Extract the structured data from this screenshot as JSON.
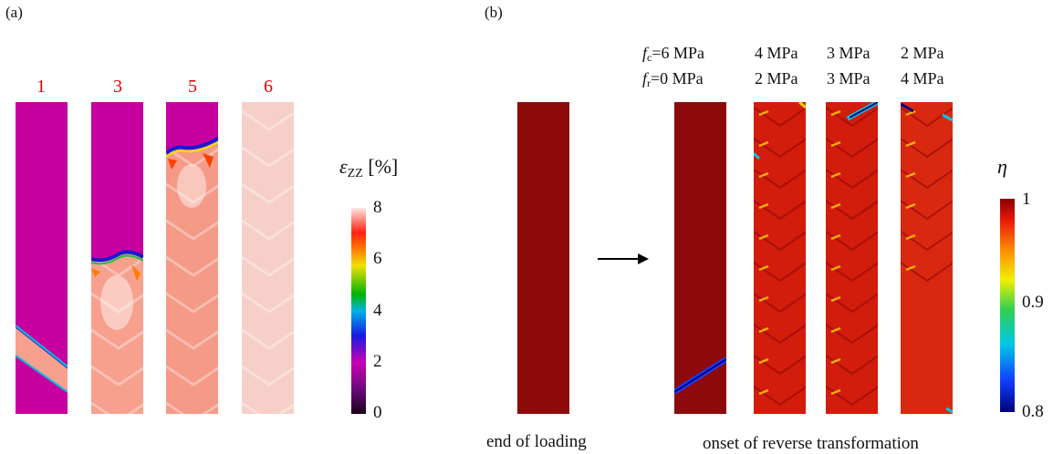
{
  "panel_a": {
    "label": "(a)",
    "steps": [
      "1",
      "3",
      "5",
      "6"
    ],
    "colorbar": {
      "title_symbol": "ε",
      "title_sub": "ZZ",
      "title_unit": "[%]",
      "ticks": [
        "8",
        "6",
        "4",
        "2",
        "0"
      ]
    }
  },
  "panel_b": {
    "label": "(b)",
    "fc_symbol": "f",
    "fc_sub": "c",
    "fc_first": "=6 MPa",
    "fr_symbol": "f",
    "fr_sub": "r",
    "fr_first": "=0 MPa",
    "fc_values": [
      "4 MPa",
      "3 MPa",
      "2 MPa"
    ],
    "fr_values": [
      "2 MPa",
      "3 MPa",
      "4 MPa"
    ],
    "caption_left": "end of loading",
    "caption_right": "onset of reverse transformation",
    "colorbar": {
      "title": "η",
      "ticks": [
        "1",
        "0.9",
        "0.8"
      ]
    }
  },
  "colors": {
    "martensite_magenta": "#c8009f",
    "strain_pink": "#f7a08e",
    "strain_light": "#f6cfc8",
    "eta_dark_red": "#8e0a0a",
    "eta_red": "#d21c0c",
    "step_label_red": "#e00000"
  }
}
